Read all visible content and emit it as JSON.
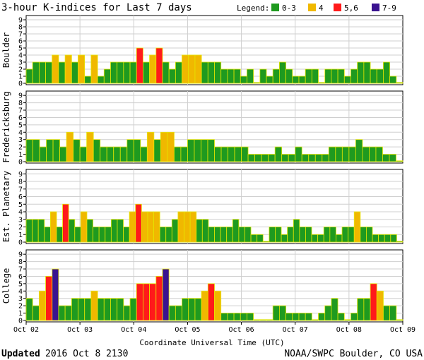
{
  "chart_data": {
    "type": "bar",
    "title": "3-hour K-indices for Last 7 days",
    "legend": {
      "label": "Legend:",
      "entries": [
        {
          "label": "0-3",
          "color": "#1f9a1f"
        },
        {
          "label": "4",
          "color": "#f0b800"
        },
        {
          "label": "5,6",
          "color": "#ff1a1a"
        },
        {
          "label": "7-9",
          "color": "#3a1390"
        }
      ],
      "placement": "top-right"
    },
    "bar_outline_color": "#e6e600",
    "xlabel": "Coordinate Universal Time (UTC)",
    "x_tick_labels": [
      "Oct 02",
      "Oct 03",
      "Oct 04",
      "Oct 05",
      "Oct 06",
      "Oct 07",
      "Oct 08",
      "Oct 09"
    ],
    "y_ticks": [
      0,
      1,
      2,
      3,
      4,
      5,
      6,
      7,
      8,
      9
    ],
    "ylim": [
      0,
      9
    ],
    "grid": true,
    "series": [
      {
        "name": "Boulder",
        "values": [
          2,
          3,
          3,
          3,
          4,
          3,
          4,
          3,
          4,
          1,
          4,
          1,
          2,
          3,
          3,
          3,
          3,
          5,
          3,
          4,
          5,
          3,
          2,
          3,
          4,
          4,
          4,
          3,
          3,
          3,
          2,
          2,
          2,
          1,
          2,
          0,
          2,
          1,
          2,
          3,
          2,
          1,
          1,
          2,
          2,
          0,
          2,
          2,
          2,
          1,
          2,
          3,
          3,
          2,
          2,
          3,
          1,
          0
        ]
      },
      {
        "name": "Fredericksburg",
        "values": [
          3,
          3,
          2,
          3,
          3,
          2,
          4,
          3,
          2,
          4,
          3,
          2,
          2,
          2,
          2,
          3,
          3,
          2,
          4,
          3,
          4,
          4,
          2,
          2,
          3,
          3,
          3,
          3,
          2,
          2,
          2,
          2,
          2,
          1,
          1,
          1,
          1,
          2,
          1,
          1,
          2,
          1,
          1,
          1,
          1,
          2,
          2,
          2,
          2,
          3,
          2,
          2,
          2,
          1,
          1,
          0
        ]
      },
      {
        "name": "Est. Planetary",
        "values": [
          3,
          3,
          3,
          2,
          4,
          2,
          5,
          3,
          2,
          4,
          3,
          2,
          2,
          2,
          3,
          3,
          2,
          4,
          5,
          4,
          4,
          4,
          2,
          2,
          3,
          4,
          4,
          4,
          3,
          3,
          2,
          2,
          2,
          2,
          3,
          2,
          2,
          1,
          1,
          0,
          2,
          2,
          1,
          2,
          3,
          2,
          2,
          1,
          1,
          2,
          2,
          1,
          2,
          2,
          4,
          2,
          2,
          1,
          1,
          1,
          1,
          0
        ]
      },
      {
        "name": "College",
        "values": [
          3,
          2,
          4,
          6,
          7,
          2,
          2,
          3,
          3,
          3,
          4,
          3,
          3,
          3,
          3,
          2,
          3,
          5,
          5,
          5,
          6,
          7,
          2,
          2,
          3,
          3,
          3,
          4,
          5,
          4,
          1,
          1,
          1,
          1,
          1,
          0,
          0,
          0,
          2,
          2,
          1,
          1,
          1,
          1,
          0,
          1,
          2,
          3,
          1,
          0,
          1,
          3,
          3,
          5,
          4,
          2,
          2,
          0
        ]
      }
    ]
  },
  "footer": {
    "updated_label": "Updated",
    "updated_value": "2016 Oct  8 2130",
    "source": "NOAA/SWPC Boulder, CO USA"
  }
}
